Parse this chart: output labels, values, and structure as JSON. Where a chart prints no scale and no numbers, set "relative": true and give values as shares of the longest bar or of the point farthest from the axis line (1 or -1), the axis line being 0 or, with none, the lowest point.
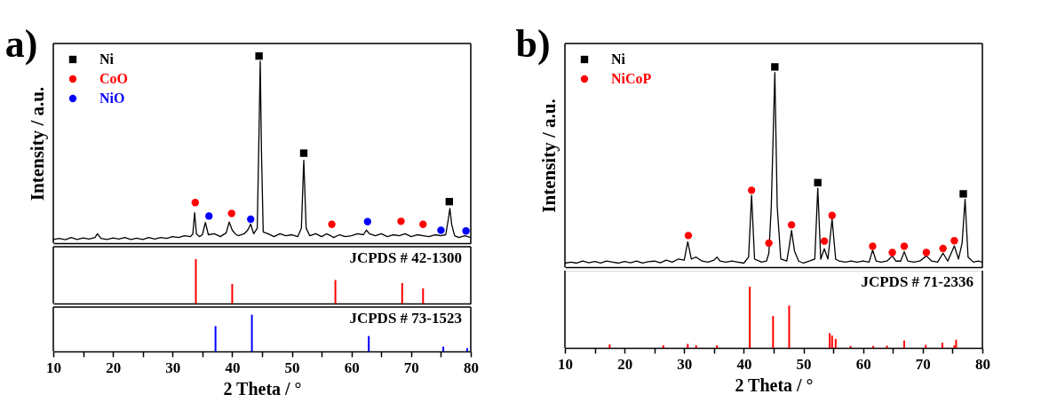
{
  "chart_data": [
    {
      "type": "line",
      "title": "a)",
      "ylabel": "Intensity / a.u.",
      "relative": true,
      "xlim": [
        10,
        80
      ],
      "tick_labels": false,
      "legend": "top left",
      "series": [
        {
          "type": "line",
          "color": "#000000",
          "x": [
            10,
            11,
            12,
            13,
            14,
            15,
            16,
            17,
            17.4,
            18,
            19,
            20,
            21,
            22,
            23,
            24,
            25,
            26,
            27,
            28,
            29,
            30,
            31,
            32,
            33,
            33.4,
            33.7,
            34.0,
            34.5,
            35,
            35.5,
            36,
            37,
            38,
            39,
            39.5,
            40,
            40.5,
            41,
            42,
            42.6,
            43.1,
            43.6,
            44.2,
            44.5,
            44.7,
            44.9,
            45.2,
            46,
            47,
            48,
            49,
            50,
            51,
            51.6,
            52.0,
            52.4,
            53,
            54,
            55,
            55.8,
            56.5,
            57,
            58,
            59,
            60,
            61,
            62,
            62.5,
            63,
            64,
            65,
            66,
            67,
            68,
            69,
            70,
            71,
            72,
            73,
            74,
            75,
            75.8,
            76.2,
            76.5,
            76.8,
            77.3,
            78,
            79,
            80
          ],
          "values": [
            0.02,
            0.025,
            0.018,
            0.03,
            0.02,
            0.028,
            0.022,
            0.03,
            0.05,
            0.025,
            0.02,
            0.028,
            0.022,
            0.03,
            0.02,
            0.027,
            0.02,
            0.03,
            0.022,
            0.03,
            0.025,
            0.035,
            0.03,
            0.04,
            0.035,
            0.05,
            0.163,
            0.05,
            0.035,
            0.045,
            0.111,
            0.045,
            0.05,
            0.035,
            0.055,
            0.113,
            0.07,
            0.05,
            0.04,
            0.05,
            0.07,
            0.102,
            0.05,
            0.08,
            0.6,
            0.973,
            0.5,
            0.06,
            0.05,
            0.035,
            0.05,
            0.04,
            0.045,
            0.035,
            0.08,
            0.443,
            0.08,
            0.04,
            0.05,
            0.035,
            0.05,
            0.04,
            0.03,
            0.045,
            0.035,
            0.04,
            0.05,
            0.045,
            0.07,
            0.05,
            0.04,
            0.05,
            0.035,
            0.045,
            0.04,
            0.05,
            0.035,
            0.045,
            0.04,
            0.035,
            0.045,
            0.04,
            0.045,
            0.12,
            0.186,
            0.1,
            0.04,
            0.03,
            0.04,
            0.03
          ]
        },
        {
          "type": "scatter",
          "name": "Ni",
          "color": "#000000",
          "marker": "square",
          "x": [
            44.5,
            52.0,
            76.4
          ],
          "values": [
            1.0,
            0.481,
            0.222
          ]
        },
        {
          "type": "scatter",
          "name": "CoO",
          "color": "#ff0000",
          "marker": "circle",
          "x": [
            33.8,
            39.9,
            56.7,
            68.3,
            72.0
          ],
          "values": [
            0.217,
            0.159,
            0.101,
            0.117,
            0.101
          ]
        },
        {
          "type": "scatter",
          "name": "NiO",
          "color": "#0000ff",
          "marker": "circle",
          "x": [
            36.1,
            43.1,
            62.7,
            75.0,
            79.2
          ],
          "values": [
            0.145,
            0.128,
            0.115,
            0.069,
            0.065
          ]
        }
      ]
    },
    {
      "type": "bar",
      "relative": true,
      "xlim": [
        10,
        80
      ],
      "tick_labels": false,
      "annotations": [
        "JCPDS # 42-1300"
      ],
      "series": [
        {
          "color": "#ff0000",
          "x": [
            33.9,
            40.0,
            57.3,
            68.5,
            72.0
          ],
          "values": [
            1,
            0.44,
            0.53,
            0.46,
            0.34
          ]
        }
      ]
    },
    {
      "type": "bar",
      "relative": true,
      "xlim": [
        10,
        80
      ],
      "xticks": [
        10,
        {
          "value": 15,
          "label": null
        },
        20,
        {
          "value": 25,
          "label": null
        },
        30,
        {
          "value": 35,
          "label": null
        },
        40,
        {
          "value": 45,
          "label": null
        },
        50,
        {
          "value": 55,
          "label": null
        },
        60,
        {
          "value": 65,
          "label": null
        },
        70,
        {
          "value": 75,
          "label": null
        },
        80
      ],
      "xlabel": "2 Theta / °",
      "tick_labels": "x",
      "annotations": [
        "JCPDS # 73-1523"
      ],
      "series": [
        {
          "color": "#0000ff",
          "x": [
            37.2,
            43.3,
            62.9,
            75.4,
            79.4
          ],
          "values": [
            0.69,
            1,
            0.42,
            0.13,
            0.09
          ]
        }
      ]
    },
    {
      "type": "line",
      "title": "b)",
      "ylabel": "Intensity / a.u.",
      "relative": true,
      "xlim": [
        10,
        80
      ],
      "tick_labels": false,
      "legend": "top left",
      "series": [
        {
          "type": "line",
          "color": "#000000",
          "x": [
            10,
            11,
            12,
            13,
            14,
            15,
            16,
            17,
            18,
            19,
            20,
            21,
            22,
            23,
            24,
            25,
            26,
            27,
            28,
            29,
            30,
            30.6,
            31.2,
            32,
            33,
            34,
            35,
            35.5,
            36,
            37,
            38,
            39,
            40,
            40.8,
            41.3,
            41.8,
            43,
            43.8,
            44.2,
            44.6,
            45.2,
            45.6,
            46.2,
            47.2,
            47.6,
            48.0,
            48.5,
            49.2,
            50,
            51,
            51.9,
            52.4,
            52.9,
            53.5,
            54.1,
            54.8,
            55.4,
            56,
            57,
            58,
            59,
            60,
            61,
            61.6,
            62.2,
            63,
            64,
            64.9,
            65.5,
            66.3,
            66.9,
            67.5,
            68.5,
            69.5,
            70.6,
            71.5,
            72.5,
            73.4,
            74.2,
            75.3,
            76.0,
            76.6,
            77.1,
            77.6,
            78.5,
            79.3,
            80
          ],
          "values": [
            0.02,
            0.025,
            0.02,
            0.03,
            0.022,
            0.028,
            0.02,
            0.03,
            0.025,
            0.02,
            0.028,
            0.022,
            0.03,
            0.02,
            0.027,
            0.03,
            0.022,
            0.035,
            0.025,
            0.04,
            0.035,
            0.127,
            0.04,
            0.05,
            0.03,
            0.025,
            0.035,
            0.05,
            0.03,
            0.025,
            0.03,
            0.025,
            0.02,
            0.05,
            0.359,
            0.04,
            0.025,
            0.03,
            0.07,
            0.3,
            0.972,
            0.3,
            0.04,
            0.03,
            0.1,
            0.183,
            0.08,
            0.03,
            0.02,
            0.03,
            0.04,
            0.394,
            0.04,
            0.092,
            0.04,
            0.24,
            0.04,
            0.03,
            0.025,
            0.03,
            0.025,
            0.03,
            0.025,
            0.085,
            0.03,
            0.025,
            0.03,
            0.056,
            0.03,
            0.03,
            0.077,
            0.03,
            0.025,
            0.03,
            0.056,
            0.03,
            0.025,
            0.07,
            0.03,
            0.106,
            0.04,
            0.12,
            0.338,
            0.05,
            0.025,
            0.03,
            0.025
          ]
        },
        {
          "type": "scatter",
          "name": "Ni",
          "color": "#000000",
          "marker": "square",
          "x": [
            45.2,
            52.4,
            76.8
          ],
          "values": [
            1.0,
            0.422,
            0.366
          ]
        },
        {
          "type": "scatter",
          "name": "NiCoP",
          "color": "#ff0000",
          "marker": "circle",
          "x": [
            30.7,
            41.3,
            44.2,
            48.0,
            53.5,
            54.8,
            61.6,
            64.9,
            66.9,
            70.6,
            73.4,
            75.3
          ],
          "values": [
            0.158,
            0.384,
            0.12,
            0.211,
            0.13,
            0.258,
            0.104,
            0.073,
            0.104,
            0.073,
            0.093,
            0.132
          ]
        }
      ]
    },
    {
      "type": "bar",
      "relative": true,
      "xlim": [
        10,
        80
      ],
      "xticks": [
        10,
        {
          "value": 15,
          "label": null
        },
        20,
        {
          "value": 25,
          "label": null
        },
        30,
        {
          "value": 35,
          "label": null
        },
        40,
        {
          "value": 45,
          "label": null
        },
        50,
        {
          "value": 55,
          "label": null
        },
        60,
        {
          "value": 65,
          "label": null
        },
        70,
        {
          "value": 75,
          "label": null
        },
        80
      ],
      "xlabel": "2 Theta / °",
      "tick_labels": "x",
      "annotations": [
        "JCPDS # 71-2336"
      ],
      "series": [
        {
          "color": "#ff0000",
          "x": [
            17.5,
            26.5,
            30.6,
            32.0,
            35.5,
            41.0,
            44.9,
            47.6,
            54.4,
            54.8,
            55.4,
            57.9,
            61.7,
            64.0,
            66.9,
            70.5,
            73.3,
            75.3,
            75.6
          ],
          "values": [
            0.055,
            0.041,
            0.065,
            0.041,
            0.041,
            1,
            0.52,
            0.69,
            0.24,
            0.2,
            0.147,
            0.032,
            0.032,
            0.037,
            0.12,
            0.05,
            0.083,
            0.041,
            0.134
          ]
        }
      ]
    }
  ]
}
